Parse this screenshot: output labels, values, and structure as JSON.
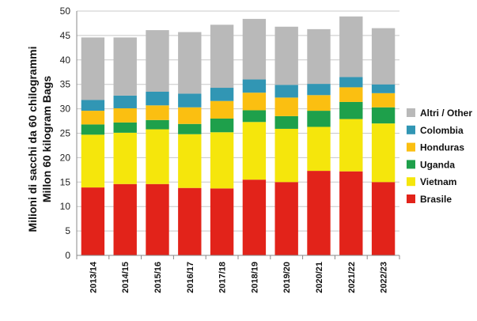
{
  "chart_data": {
    "type": "bar",
    "stacked": true,
    "categories": [
      "2013/14",
      "2014/15",
      "2015/16",
      "2016/17",
      "2017/18",
      "2018/19",
      "2019/20",
      "2020/21",
      "2021/22",
      "2022/23"
    ],
    "ylabel_line1": "Milioni di sacchi da 60 chilogrammi",
    "ylabel_line2": "Millon 60 kilogram Bags",
    "ylim": [
      0,
      50
    ],
    "yticks": [
      "0",
      "5",
      "10",
      "15",
      "20",
      "25",
      "30",
      "35",
      "40",
      "45",
      "50"
    ],
    "legend_position": "right",
    "series": [
      {
        "name": "Brasile",
        "color": "#e2231a",
        "values": [
          13.9,
          14.6,
          14.6,
          13.8,
          13.7,
          15.5,
          15.0,
          17.3,
          17.2,
          15.0
        ]
      },
      {
        "name": "Vietnam",
        "color": "#f5e60c",
        "values": [
          10.8,
          10.5,
          11.2,
          11.0,
          11.5,
          11.8,
          10.9,
          9.0,
          10.7,
          12.0
        ]
      },
      {
        "name": "Uganda",
        "color": "#1ea04b",
        "values": [
          2.1,
          2.1,
          1.9,
          2.1,
          2.8,
          2.4,
          2.6,
          3.3,
          3.5,
          3.3
        ]
      },
      {
        "name": "Honduras",
        "color": "#fbbf11",
        "values": [
          2.8,
          2.9,
          3.0,
          3.4,
          3.6,
          3.6,
          3.8,
          3.2,
          3.0,
          2.9
        ]
      },
      {
        "name": "Colombia",
        "color": "#3196b4",
        "values": [
          2.2,
          2.6,
          2.8,
          2.8,
          2.7,
          2.7,
          2.6,
          2.3,
          2.1,
          1.8
        ]
      },
      {
        "name": "Altri / Other",
        "color": "#b9b9b9",
        "values": [
          12.8,
          11.9,
          12.6,
          12.6,
          12.9,
          12.4,
          11.9,
          11.2,
          12.4,
          11.5
        ]
      }
    ]
  }
}
